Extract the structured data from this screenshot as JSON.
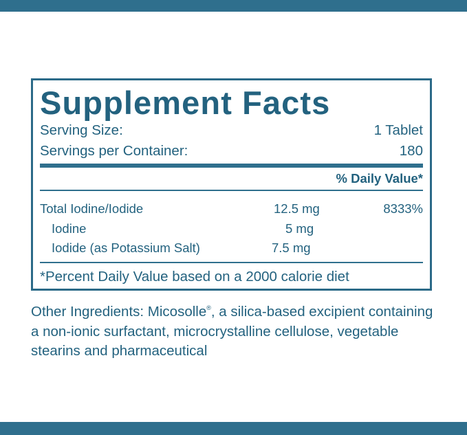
{
  "title": "Supplement Facts",
  "serving_size": {
    "label": "Serving Size:",
    "value": "1 Tablet"
  },
  "servings_per_container": {
    "label": "Servings per Container:",
    "value": "180"
  },
  "daily_value_header": "% Daily Value*",
  "nutrients": [
    {
      "name": "Total Iodine/Iodide",
      "amount": "12.5 mg",
      "dv": "8333%"
    },
    {
      "name": "Iodine",
      "amount": "5 mg",
      "dv": ""
    },
    {
      "name": "Iodide (as Potassium Salt)",
      "amount": "7.5 mg",
      "dv": ""
    }
  ],
  "footnote": "*Percent Daily Value based on a 2000 calorie diet",
  "other_ingredients": {
    "prefix": "Other Ingredients: Micosolle",
    "mark": "®",
    "rest": ", a silica-based excipient containing a non-ionic surfactant, microcrystalline cellulose, vegetable stearins and pharmaceutical"
  },
  "colors": {
    "brand_blue": "#2f6f8d",
    "text_blue": "#23627f"
  }
}
